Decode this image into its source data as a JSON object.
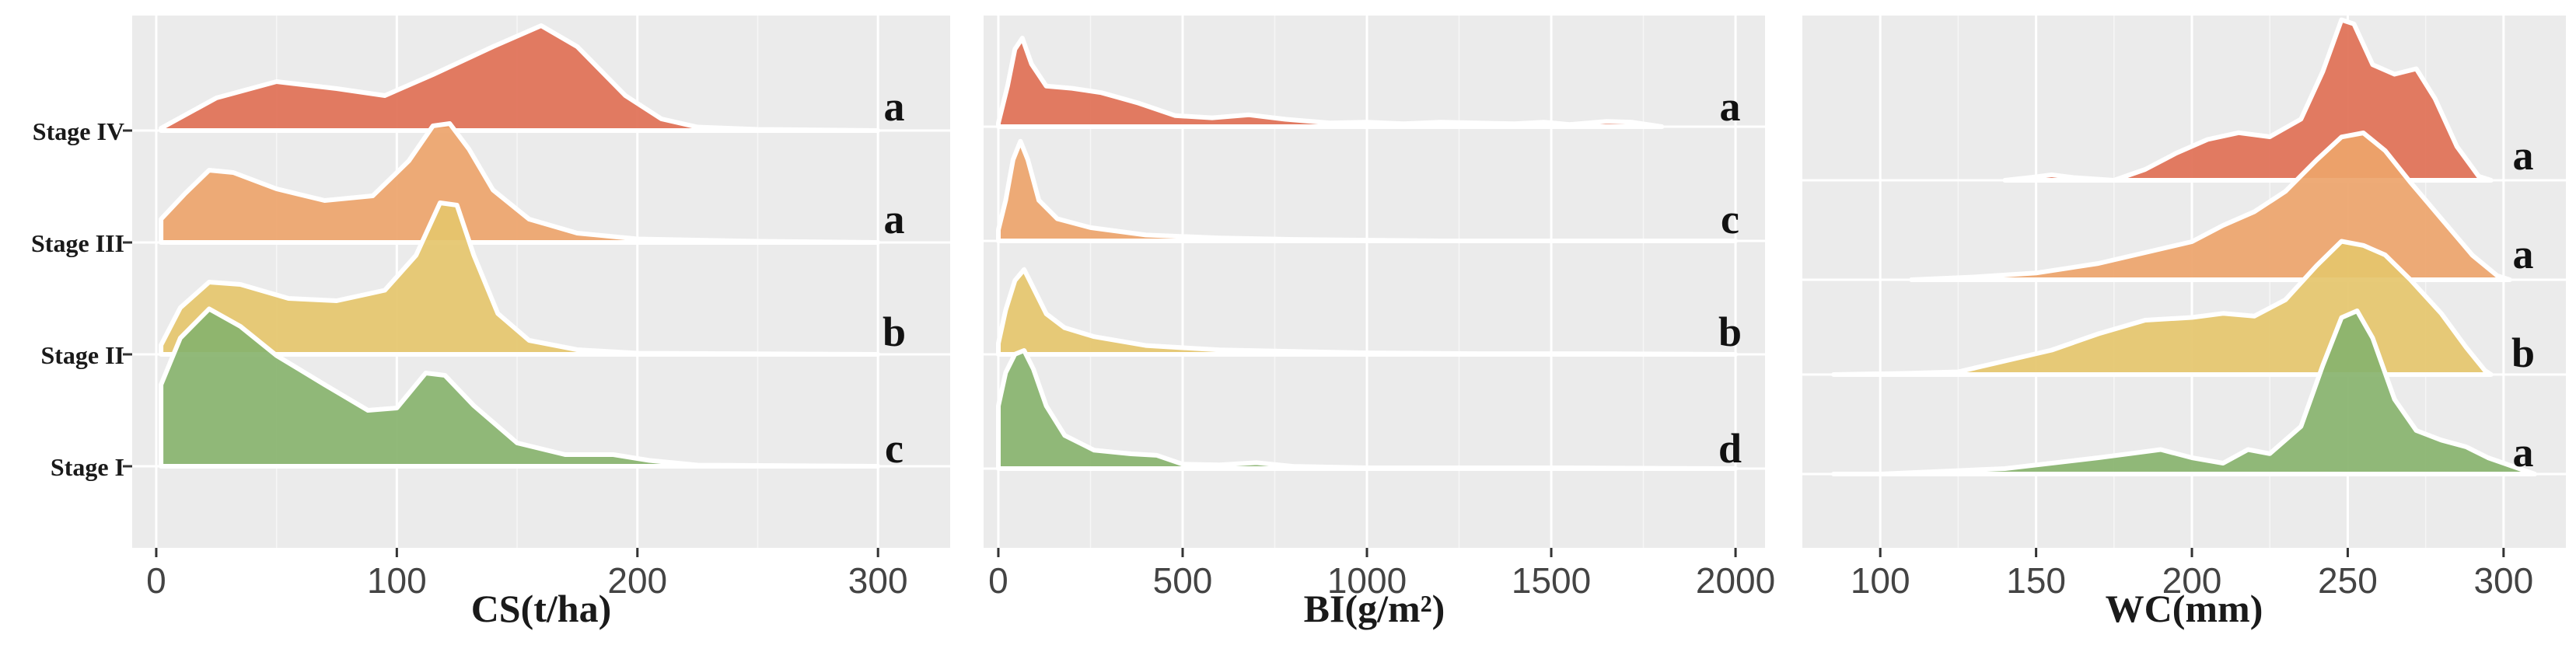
{
  "colors": {
    "Stage IV": "#e07055",
    "Stage III": "#eda46b",
    "Stage II": "#e5c56d",
    "Stage I": "#88b36e"
  },
  "chart_data": [
    {
      "type": "ridgeline",
      "xlabel": "CS(t/ha)",
      "xlim": [
        -10,
        330
      ],
      "xticks": [
        0,
        100,
        200,
        300
      ],
      "grid": true,
      "categories": [
        "Stage IV",
        "Stage III",
        "Stage II",
        "Stage I"
      ],
      "series": [
        {
          "name": "Stage IV",
          "letter": "a",
          "points": [
            [
              2,
              0.02
            ],
            [
              25,
              0.28
            ],
            [
              50,
              0.42
            ],
            [
              75,
              0.36
            ],
            [
              95,
              0.3
            ],
            [
              115,
              0.48
            ],
            [
              140,
              0.72
            ],
            [
              160,
              0.9
            ],
            [
              175,
              0.72
            ],
            [
              195,
              0.3
            ],
            [
              210,
              0.1
            ],
            [
              225,
              0.03
            ],
            [
              250,
              0.01
            ],
            [
              300,
              0.0
            ]
          ]
        },
        {
          "name": "Stage III",
          "letter": "a",
          "points": [
            [
              2,
              0.2
            ],
            [
              12,
              0.42
            ],
            [
              22,
              0.62
            ],
            [
              32,
              0.6
            ],
            [
              50,
              0.46
            ],
            [
              70,
              0.36
            ],
            [
              90,
              0.4
            ],
            [
              105,
              0.7
            ],
            [
              115,
              1.0
            ],
            [
              122,
              1.02
            ],
            [
              130,
              0.8
            ],
            [
              140,
              0.45
            ],
            [
              155,
              0.2
            ],
            [
              175,
              0.08
            ],
            [
              200,
              0.03
            ],
            [
              250,
              0.01
            ],
            [
              300,
              0.0
            ]
          ]
        },
        {
          "name": "Stage II",
          "letter": "b",
          "points": [
            [
              2,
              0.08
            ],
            [
              10,
              0.4
            ],
            [
              22,
              0.62
            ],
            [
              35,
              0.6
            ],
            [
              55,
              0.48
            ],
            [
              75,
              0.46
            ],
            [
              95,
              0.55
            ],
            [
              108,
              0.85
            ],
            [
              118,
              1.3
            ],
            [
              125,
              1.28
            ],
            [
              132,
              0.85
            ],
            [
              142,
              0.35
            ],
            [
              155,
              0.12
            ],
            [
              175,
              0.04
            ],
            [
              200,
              0.01
            ],
            [
              300,
              0.0
            ]
          ]
        },
        {
          "name": "Stage I",
          "letter": "c",
          "points": [
            [
              2,
              0.7
            ],
            [
              10,
              1.1
            ],
            [
              22,
              1.35
            ],
            [
              35,
              1.2
            ],
            [
              50,
              0.95
            ],
            [
              70,
              0.7
            ],
            [
              88,
              0.48
            ],
            [
              100,
              0.5
            ],
            [
              112,
              0.8
            ],
            [
              120,
              0.78
            ],
            [
              132,
              0.52
            ],
            [
              150,
              0.2
            ],
            [
              170,
              0.1
            ],
            [
              190,
              0.1
            ],
            [
              205,
              0.05
            ],
            [
              225,
              0.01
            ],
            [
              300,
              0.0
            ]
          ]
        }
      ]
    },
    {
      "type": "ridgeline",
      "xlabel": "BI(g/m²)",
      "xlim": [
        -40,
        2080
      ],
      "xticks": [
        0,
        500,
        1000,
        1500,
        2000
      ],
      "grid": true,
      "categories": [
        "Stage IV",
        "Stage III",
        "Stage II",
        "Stage I"
      ],
      "series": [
        {
          "name": "Stage IV",
          "letter": "a",
          "points": [
            [
              0,
              0.05
            ],
            [
              25,
              0.55
            ],
            [
              45,
              1.05
            ],
            [
              65,
              1.2
            ],
            [
              90,
              0.85
            ],
            [
              130,
              0.55
            ],
            [
              200,
              0.52
            ],
            [
              280,
              0.46
            ],
            [
              380,
              0.32
            ],
            [
              480,
              0.15
            ],
            [
              580,
              0.12
            ],
            [
              680,
              0.16
            ],
            [
              780,
              0.1
            ],
            [
              900,
              0.05
            ],
            [
              1000,
              0.06
            ],
            [
              1100,
              0.04
            ],
            [
              1200,
              0.06
            ],
            [
              1300,
              0.05
            ],
            [
              1400,
              0.04
            ],
            [
              1480,
              0.06
            ],
            [
              1550,
              0.03
            ],
            [
              1650,
              0.07
            ],
            [
              1720,
              0.06
            ],
            [
              1800,
              0.0
            ]
          ]
        },
        {
          "name": "Stage III",
          "letter": "c",
          "points": [
            [
              0,
              0.15
            ],
            [
              20,
              0.55
            ],
            [
              40,
              1.1
            ],
            [
              60,
              1.35
            ],
            [
              80,
              1.1
            ],
            [
              110,
              0.55
            ],
            [
              160,
              0.3
            ],
            [
              250,
              0.18
            ],
            [
              400,
              0.08
            ],
            [
              600,
              0.04
            ],
            [
              800,
              0.02
            ],
            [
              1000,
              0.01
            ],
            [
              1200,
              0.0
            ],
            [
              1500,
              0.0
            ],
            [
              2000,
              0.0
            ]
          ]
        },
        {
          "name": "Stage II",
          "letter": "b",
          "points": [
            [
              0,
              0.15
            ],
            [
              20,
              0.6
            ],
            [
              45,
              1.0
            ],
            [
              70,
              1.15
            ],
            [
              95,
              0.9
            ],
            [
              130,
              0.55
            ],
            [
              180,
              0.36
            ],
            [
              260,
              0.24
            ],
            [
              400,
              0.12
            ],
            [
              600,
              0.06
            ],
            [
              800,
              0.04
            ],
            [
              1000,
              0.02
            ],
            [
              1300,
              0.01
            ],
            [
              1600,
              0.01
            ],
            [
              2000,
              0.0
            ]
          ]
        },
        {
          "name": "Stage I",
          "letter": "d",
          "points": [
            [
              0,
              0.85
            ],
            [
              20,
              1.3
            ],
            [
              45,
              1.55
            ],
            [
              70,
              1.6
            ],
            [
              95,
              1.35
            ],
            [
              130,
              0.85
            ],
            [
              180,
              0.45
            ],
            [
              260,
              0.25
            ],
            [
              360,
              0.2
            ],
            [
              430,
              0.18
            ],
            [
              500,
              0.06
            ],
            [
              600,
              0.05
            ],
            [
              700,
              0.08
            ],
            [
              800,
              0.03
            ],
            [
              1000,
              0.01
            ],
            [
              1500,
              0.01
            ],
            [
              2000,
              0.0
            ]
          ]
        }
      ]
    },
    {
      "type": "ridgeline",
      "xlabel": "WC(mm)",
      "xlim": [
        75,
        320
      ],
      "xticks": [
        100,
        150,
        200,
        250,
        300
      ],
      "grid": true,
      "categories": [
        "Stage IV",
        "Stage III",
        "Stage II",
        "Stage I"
      ],
      "series": [
        {
          "name": "Stage IV",
          "letter": "a",
          "points": [
            [
              140,
              0.0
            ],
            [
              148,
              0.02
            ],
            [
              155,
              0.04
            ],
            [
              162,
              0.02
            ],
            [
              175,
              0.0
            ],
            [
              185,
              0.08
            ],
            [
              195,
              0.2
            ],
            [
              205,
              0.3
            ],
            [
              215,
              0.35
            ],
            [
              225,
              0.32
            ],
            [
              235,
              0.45
            ],
            [
              242,
              0.8
            ],
            [
              248,
              1.18
            ],
            [
              252,
              1.15
            ],
            [
              258,
              0.85
            ],
            [
              265,
              0.78
            ],
            [
              272,
              0.82
            ],
            [
              278,
              0.6
            ],
            [
              285,
              0.25
            ],
            [
              292,
              0.03
            ],
            [
              296,
              0.0
            ]
          ]
        },
        {
          "name": "Stage III",
          "letter": "a",
          "points": [
            [
              110,
              0.0
            ],
            [
              130,
              0.02
            ],
            [
              150,
              0.05
            ],
            [
              170,
              0.12
            ],
            [
              185,
              0.2
            ],
            [
              200,
              0.28
            ],
            [
              210,
              0.4
            ],
            [
              220,
              0.5
            ],
            [
              230,
              0.65
            ],
            [
              240,
              0.88
            ],
            [
              248,
              1.05
            ],
            [
              255,
              1.08
            ],
            [
              262,
              0.95
            ],
            [
              270,
              0.72
            ],
            [
              280,
              0.45
            ],
            [
              290,
              0.18
            ],
            [
              298,
              0.03
            ],
            [
              302,
              0.0
            ]
          ]
        },
        {
          "name": "Stage II",
          "letter": "b",
          "points": [
            [
              85,
              0.0
            ],
            [
              110,
              0.01
            ],
            [
              125,
              0.02
            ],
            [
              140,
              0.1
            ],
            [
              155,
              0.18
            ],
            [
              170,
              0.3
            ],
            [
              185,
              0.4
            ],
            [
              200,
              0.42
            ],
            [
              210,
              0.45
            ],
            [
              220,
              0.43
            ],
            [
              230,
              0.55
            ],
            [
              240,
              0.8
            ],
            [
              248,
              0.98
            ],
            [
              255,
              0.95
            ],
            [
              262,
              0.88
            ],
            [
              270,
              0.7
            ],
            [
              280,
              0.45
            ],
            [
              288,
              0.2
            ],
            [
              294,
              0.03
            ],
            [
              296,
              0.0
            ]
          ]
        },
        {
          "name": "Stage I",
          "letter": "a",
          "points": [
            [
              85,
              0.0
            ],
            [
              100,
              0.0
            ],
            [
              120,
              0.02
            ],
            [
              140,
              0.04
            ],
            [
              155,
              0.08
            ],
            [
              170,
              0.12
            ],
            [
              180,
              0.15
            ],
            [
              190,
              0.18
            ],
            [
              200,
              0.12
            ],
            [
              210,
              0.08
            ],
            [
              218,
              0.18
            ],
            [
              225,
              0.15
            ],
            [
              235,
              0.35
            ],
            [
              242,
              0.8
            ],
            [
              248,
              1.15
            ],
            [
              253,
              1.2
            ],
            [
              258,
              1.0
            ],
            [
              265,
              0.55
            ],
            [
              272,
              0.32
            ],
            [
              280,
              0.25
            ],
            [
              288,
              0.2
            ],
            [
              295,
              0.12
            ],
            [
              305,
              0.04
            ],
            [
              310,
              0.0
            ]
          ]
        }
      ]
    }
  ]
}
